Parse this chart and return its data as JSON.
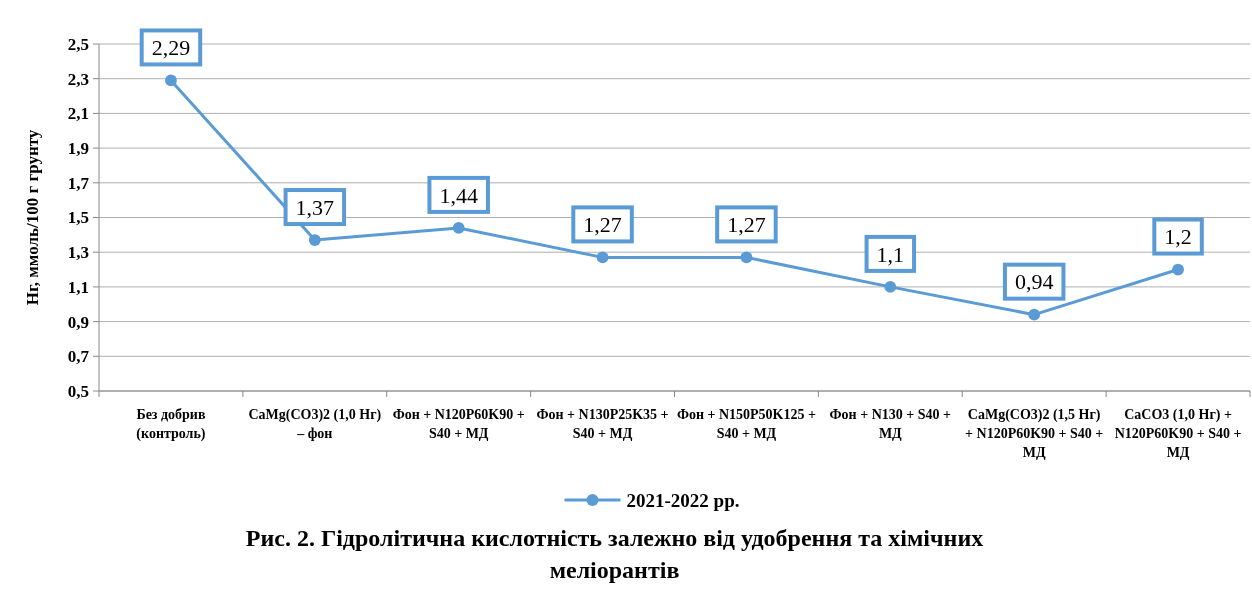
{
  "chart_data": {
    "type": "line",
    "title": "Рис. 2.   Гідролітична кислотність  залежно від удобрення та хімічних меліорантів",
    "ylabel": "Нг, ммоль/100 г грунту",
    "categories": [
      "Без добрив (контроль)",
      "CaMg(CO3)2 (1,0 Нг) – фон",
      "Фон + N120P60K90 + S40 + МД",
      "Фон + N130P25K35 + S40 + МД",
      "Фон + N150P50K125 + S40 + МД",
      "Фон + N130  + S40 + МД",
      "CaMg(CO3)2 (1,5 Нг) + N120P60K90 + S40 + МД",
      "CaCO3 (1,0 Нг) + N120P60K90 + S40 + МД"
    ],
    "series": [
      {
        "name": "2021-2022 рр.",
        "color": "#5b9bd5",
        "values": [
          2.29,
          1.37,
          1.44,
          1.27,
          1.27,
          1.1,
          0.94,
          1.2
        ],
        "value_labels": [
          "2,29",
          "1,37",
          "1,44",
          "1,27",
          "1,27",
          "1,1",
          "0,94",
          "1,2"
        ]
      }
    ],
    "ylim": [
      0.5,
      2.5
    ],
    "yticks": [
      {
        "value": 0.5,
        "label": "0,5"
      },
      {
        "value": 0.7,
        "label": "0,7"
      },
      {
        "value": 0.9,
        "label": "0,9"
      },
      {
        "value": 1.1,
        "label": "1,1"
      },
      {
        "value": 1.3,
        "label": "1,3"
      },
      {
        "value": 1.5,
        "label": "1,5"
      },
      {
        "value": 1.7,
        "label": "1,7"
      },
      {
        "value": 1.9,
        "label": "1,9"
      },
      {
        "value": 2.1,
        "label": "2,1"
      },
      {
        "value": 2.3,
        "label": "2,3"
      },
      {
        "value": 2.5,
        "label": "2,5"
      }
    ],
    "grid": "y",
    "legend": "bottom",
    "marker": "circle",
    "line_style": "solid"
  }
}
